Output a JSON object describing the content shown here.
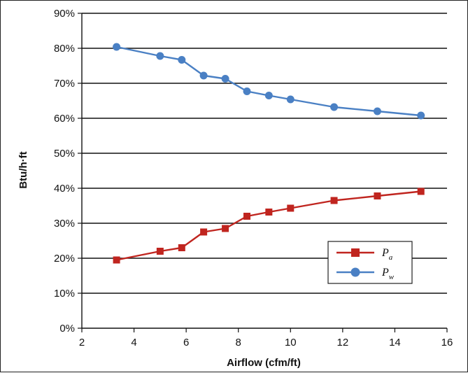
{
  "chart_data": {
    "type": "line",
    "xlabel": "Airflow (cfm/ft)",
    "ylabel": "Btu/h·ft",
    "xlim": [
      2,
      16
    ],
    "ylim": [
      0,
      90
    ],
    "x_ticks": [
      2,
      4,
      6,
      8,
      10,
      12,
      14,
      16
    ],
    "y_ticks": [
      0,
      10,
      20,
      30,
      40,
      50,
      60,
      70,
      80,
      90
    ],
    "y_tick_suffix": "%",
    "grid": "horizontal",
    "legend_position": "lower-right",
    "series": [
      {
        "name": "P",
        "subscript": "a",
        "color": "#c0251f",
        "marker": "square",
        "x": [
          3.33,
          5.0,
          5.83,
          6.67,
          7.5,
          8.33,
          9.17,
          10.0,
          11.67,
          13.33,
          15.0
        ],
        "y": [
          19.5,
          22.0,
          23.0,
          27.5,
          28.5,
          32.0,
          33.2,
          34.3,
          36.5,
          37.8,
          39.1
        ]
      },
      {
        "name": "P",
        "subscript": "w",
        "color": "#4a80c4",
        "marker": "circle",
        "x": [
          3.33,
          5.0,
          5.83,
          6.67,
          7.5,
          8.33,
          9.17,
          10.0,
          11.67,
          13.33,
          15.0
        ],
        "y": [
          80.4,
          77.8,
          76.7,
          72.2,
          71.3,
          67.7,
          66.5,
          65.4,
          63.2,
          62.0,
          60.8
        ]
      }
    ]
  }
}
